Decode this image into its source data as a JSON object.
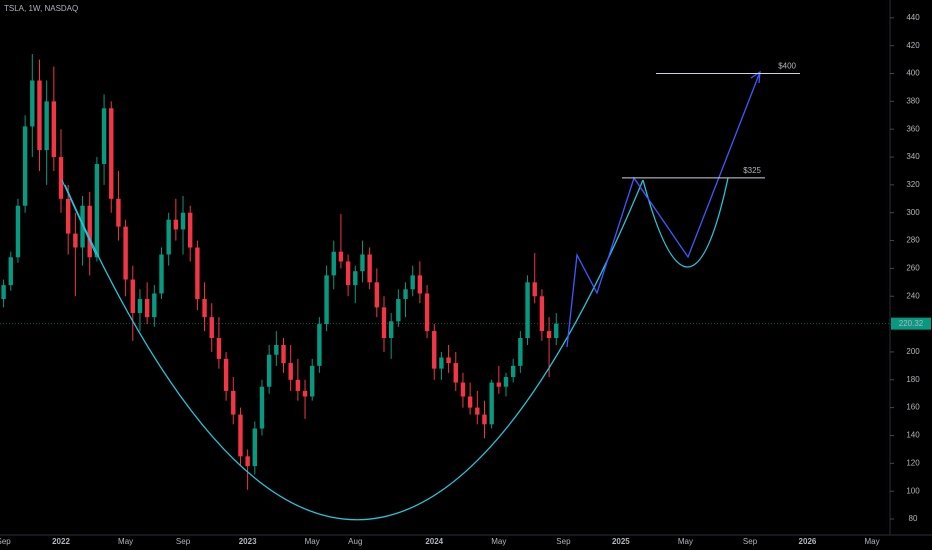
{
  "chart_data": {
    "type": "candlestick",
    "title": "TSLA, 1W, NASDAQ",
    "categories": [
      "Sep",
      null,
      null,
      null,
      null,
      null,
      null,
      null,
      "2022",
      null,
      null,
      null,
      null,
      null,
      null,
      null,
      null,
      "May",
      null,
      null,
      null,
      null,
      null,
      null,
      null,
      "Sep",
      null,
      null,
      null,
      null,
      null,
      null,
      null,
      null,
      "2023",
      null,
      null,
      null,
      null,
      null,
      null,
      null,
      null,
      "May",
      null,
      null,
      null,
      null,
      null,
      "Aug",
      null,
      null,
      null,
      null,
      null,
      null,
      null,
      null,
      null,
      null,
      "2024",
      null,
      null,
      null,
      null,
      null,
      null,
      null,
      null,
      "May",
      null,
      null,
      null,
      null,
      null,
      null,
      null,
      null,
      "Sep",
      null,
      null,
      null,
      null,
      null,
      null,
      null,
      "2025",
      null,
      null,
      null,
      null,
      null,
      null,
      null,
      null,
      "May",
      null,
      null,
      null,
      null,
      null,
      null,
      null,
      null,
      "Sep",
      null,
      null,
      null,
      null,
      null,
      null,
      null,
      "2026",
      null,
      null,
      null,
      null,
      null,
      null,
      null,
      null,
      "May",
      null,
      null
    ],
    "open": [
      238,
      248,
      268,
      305,
      362,
      395,
      345,
      380,
      340,
      310,
      285,
      275,
      305,
      268,
      335,
      375,
      310,
      290,
      252,
      228,
      238,
      225,
      242,
      270,
      295,
      288,
      300,
      275,
      238,
      225,
      210,
      195,
      172,
      155,
      125,
      118,
      145,
      175,
      198,
      205,
      192,
      180,
      172,
      168,
      190,
      220,
      255,
      272,
      265,
      248,
      258,
      270,
      250,
      232,
      210,
      222,
      238,
      245,
      255,
      242,
      215,
      188,
      196,
      192,
      178,
      168,
      160,
      155,
      148,
      178,
      175,
      182,
      190,
      210,
      250,
      240,
      215,
      210,
      null,
      null,
      null,
      null,
      null,
      null,
      null,
      null,
      null,
      null,
      null,
      null,
      null,
      null,
      null,
      null,
      null,
      null,
      null,
      null,
      null,
      null,
      null,
      null,
      null,
      null,
      null,
      null,
      null,
      null,
      null,
      null,
      null,
      null,
      null,
      null,
      null,
      null,
      null,
      null,
      null,
      null,
      null,
      null,
      null,
      null
    ],
    "high": [
      252,
      272,
      310,
      370,
      414,
      410,
      395,
      405,
      360,
      320,
      300,
      312,
      315,
      340,
      385,
      380,
      330,
      295,
      262,
      245,
      250,
      248,
      275,
      300,
      310,
      312,
      305,
      280,
      250,
      235,
      225,
      200,
      182,
      160,
      130,
      150,
      180,
      205,
      215,
      210,
      205,
      195,
      180,
      195,
      225,
      262,
      280,
      299,
      270,
      262,
      280,
      275,
      260,
      240,
      228,
      245,
      250,
      262,
      265,
      248,
      220,
      200,
      205,
      200,
      185,
      178,
      172,
      165,
      180,
      190,
      185,
      195,
      215,
      255,
      271,
      245,
      225,
      228,
      null,
      null,
      null,
      null,
      null,
      null,
      null,
      null,
      null,
      null,
      null,
      null,
      null,
      null,
      null,
      null,
      null,
      null,
      null,
      null,
      null,
      null,
      null,
      null,
      null,
      null,
      null,
      null,
      null,
      null,
      null,
      null,
      null,
      null,
      null,
      null,
      null,
      null,
      null,
      null,
      null,
      null,
      null,
      null,
      null,
      null
    ],
    "low": [
      232,
      244,
      264,
      300,
      340,
      330,
      320,
      330,
      300,
      270,
      240,
      262,
      255,
      265,
      320,
      300,
      280,
      240,
      208,
      215,
      220,
      218,
      238,
      262,
      280,
      270,
      265,
      230,
      215,
      200,
      188,
      165,
      148,
      118,
      101,
      112,
      140,
      170,
      190,
      185,
      172,
      165,
      152,
      165,
      185,
      215,
      245,
      260,
      240,
      235,
      250,
      245,
      225,
      200,
      195,
      218,
      225,
      240,
      235,
      210,
      180,
      180,
      185,
      172,
      160,
      155,
      148,
      138,
      145,
      170,
      168,
      178,
      185,
      205,
      235,
      208,
      182,
      205,
      null,
      null,
      null,
      null,
      null,
      null,
      null,
      null,
      null,
      null,
      null,
      null,
      null,
      null,
      null,
      null,
      null,
      null,
      null,
      null,
      null,
      null,
      null,
      null,
      null,
      null,
      null,
      null,
      null,
      null,
      null,
      null,
      null,
      null,
      null,
      null,
      null,
      null,
      null,
      null,
      null,
      null,
      null,
      null,
      null,
      null
    ],
    "close": [
      248,
      268,
      305,
      362,
      395,
      345,
      380,
      340,
      310,
      285,
      275,
      305,
      268,
      335,
      375,
      310,
      290,
      252,
      228,
      238,
      225,
      242,
      270,
      295,
      288,
      300,
      275,
      238,
      225,
      210,
      195,
      172,
      155,
      125,
      118,
      145,
      175,
      198,
      205,
      192,
      180,
      172,
      168,
      190,
      220,
      255,
      272,
      265,
      248,
      258,
      270,
      250,
      232,
      210,
      222,
      238,
      245,
      255,
      242,
      215,
      188,
      196,
      192,
      178,
      168,
      160,
      155,
      148,
      178,
      175,
      182,
      190,
      210,
      250,
      240,
      215,
      210,
      220.32,
      null,
      null,
      null,
      null,
      null,
      null,
      null,
      null,
      null,
      null,
      null,
      null,
      null,
      null,
      null,
      null,
      null,
      null,
      null,
      null,
      null,
      null,
      null,
      null,
      null,
      null,
      null,
      null,
      null,
      null,
      null,
      null,
      null,
      null,
      null,
      null,
      null,
      null,
      null,
      null,
      null,
      null,
      null,
      null,
      null,
      null
    ],
    "up_color": "#089981",
    "down_color": "#f23645",
    "ylim": [
      68.5,
      452.8
    ],
    "yticks": [
      80,
      100,
      120,
      140,
      160,
      180,
      200,
      220,
      240,
      260,
      280,
      300,
      320,
      340,
      360,
      380,
      400,
      420,
      440
    ],
    "last_price": 220.32,
    "levels": [
      {
        "value": 325,
        "label": "$325"
      },
      {
        "value": 400,
        "label": "$400"
      }
    ]
  }
}
